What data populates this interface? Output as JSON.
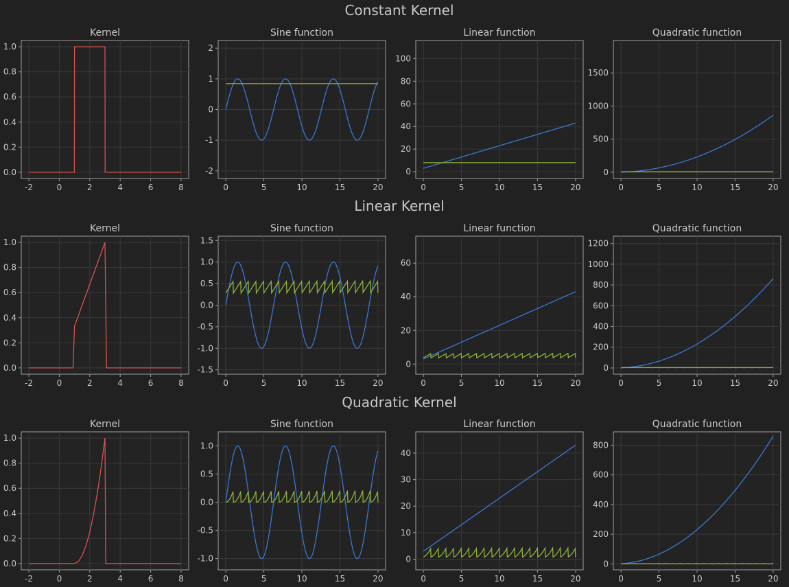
{
  "colors": {
    "background": "#212121",
    "axes_bg": "#232323",
    "kernel": "#d9534f",
    "function": "#3a78d4",
    "convolved": "#8fb339",
    "text": "#c8c8c8"
  },
  "row_titles": [
    "Constant Kernel",
    "Linear Kernel",
    "Quadratic Kernel"
  ],
  "chart_data": [
    {
      "row": 0,
      "col": 0,
      "type": "line",
      "title": "Kernel",
      "xlim": [
        -2.5,
        8.5
      ],
      "ylim": [
        -0.05,
        1.05
      ],
      "xticks": [
        -2,
        0,
        2,
        4,
        6,
        8
      ],
      "yticks": [
        0.0,
        0.2,
        0.4,
        0.6,
        0.8,
        1.0
      ],
      "ytick_decimals": 1,
      "series": [
        {
          "role": "kernel",
          "x": [
            -2,
            0.99,
            1,
            3,
            3.01,
            8
          ],
          "y": [
            0,
            0,
            1,
            1,
            0,
            0
          ]
        }
      ]
    },
    {
      "row": 0,
      "col": 1,
      "type": "line",
      "title": "Sine function",
      "xlim": [
        -1,
        21
      ],
      "ylim": [
        -2.25,
        2.25
      ],
      "xticks": [
        0,
        5,
        10,
        15,
        20
      ],
      "yticks": [
        -2,
        -1,
        0,
        1,
        2
      ],
      "ytick_decimals": 0,
      "series": [
        {
          "role": "function",
          "generator": "sin"
        },
        {
          "role": "convolved",
          "generator": "conv",
          "kernel": "constant",
          "func": "sin"
        }
      ]
    },
    {
      "row": 0,
      "col": 2,
      "type": "line",
      "title": "Linear function",
      "xlim": [
        -1,
        21
      ],
      "ylim": [
        -6,
        116
      ],
      "xticks": [
        0,
        5,
        10,
        15,
        20
      ],
      "yticks": [
        0,
        20,
        40,
        60,
        80,
        100
      ],
      "ytick_decimals": 0,
      "series": [
        {
          "role": "function",
          "generator": "linear"
        },
        {
          "role": "convolved",
          "generator": "conv",
          "kernel": "constant",
          "func": "linear"
        }
      ]
    },
    {
      "row": 0,
      "col": 3,
      "type": "line",
      "title": "Quadratic function",
      "xlim": [
        -1,
        21
      ],
      "ylim": [
        -95,
        1990
      ],
      "xticks": [
        0,
        5,
        10,
        15,
        20
      ],
      "yticks": [
        0,
        500,
        1000,
        1500
      ],
      "ytick_decimals": 0,
      "series": [
        {
          "role": "function",
          "generator": "quadratic"
        },
        {
          "role": "convolved",
          "generator": "conv",
          "kernel": "constant",
          "func": "quadratic"
        }
      ]
    },
    {
      "row": 1,
      "col": 0,
      "type": "line",
      "title": "Kernel",
      "xlim": [
        -2.5,
        8.5
      ],
      "ylim": [
        -0.05,
        1.05
      ],
      "xticks": [
        -2,
        0,
        2,
        4,
        6,
        8
      ],
      "yticks": [
        0.0,
        0.2,
        0.4,
        0.6,
        0.8,
        1.0
      ],
      "ytick_decimals": 1,
      "series": [
        {
          "role": "kernel",
          "x": [
            -2,
            0.9,
            1,
            3,
            3.1,
            8
          ],
          "y": [
            0,
            0,
            0.333,
            1,
            0,
            0
          ]
        }
      ]
    },
    {
      "row": 1,
      "col": 1,
      "type": "line",
      "title": "Sine function",
      "xlim": [
        -1,
        21
      ],
      "ylim": [
        -1.6,
        1.6
      ],
      "xticks": [
        0,
        5,
        10,
        15,
        20
      ],
      "yticks": [
        -1.5,
        -1.0,
        -0.5,
        0.0,
        0.5,
        1.0,
        1.5
      ],
      "ytick_decimals": 1,
      "series": [
        {
          "role": "function",
          "generator": "sin"
        },
        {
          "role": "convolved",
          "generator": "conv",
          "kernel": "linear",
          "func": "sin"
        }
      ]
    },
    {
      "row": 1,
      "col": 2,
      "type": "line",
      "title": "Linear function",
      "xlim": [
        -1,
        21
      ],
      "ylim": [
        -6,
        76
      ],
      "xticks": [
        0,
        5,
        10,
        15,
        20
      ],
      "yticks": [
        0,
        20,
        40,
        60
      ],
      "ytick_decimals": 0,
      "series": [
        {
          "role": "function",
          "generator": "linear"
        },
        {
          "role": "convolved",
          "generator": "conv",
          "kernel": "linear",
          "func": "linear"
        }
      ]
    },
    {
      "row": 1,
      "col": 3,
      "type": "line",
      "title": "Quadratic function",
      "xlim": [
        -1,
        21
      ],
      "ylim": [
        -60,
        1270
      ],
      "xticks": [
        0,
        5,
        10,
        15,
        20
      ],
      "yticks": [
        0,
        200,
        400,
        600,
        800,
        1000,
        1200
      ],
      "ytick_decimals": 0,
      "series": [
        {
          "role": "function",
          "generator": "quadratic"
        },
        {
          "role": "convolved",
          "generator": "conv",
          "kernel": "linear",
          "func": "quadratic"
        }
      ]
    },
    {
      "row": 2,
      "col": 0,
      "type": "line",
      "title": "Kernel",
      "xlim": [
        -2.5,
        8.5
      ],
      "ylim": [
        -0.05,
        1.05
      ],
      "xticks": [
        -2,
        0,
        2,
        4,
        6,
        8
      ],
      "yticks": [
        0.0,
        0.2,
        0.4,
        0.6,
        0.8,
        1.0
      ],
      "ytick_decimals": 1,
      "series": [
        {
          "role": "kernel",
          "x": [
            -2,
            1,
            1.25,
            1.5,
            1.75,
            2,
            2.25,
            2.5,
            2.75,
            3,
            3.05,
            8
          ],
          "y": [
            0,
            0,
            0.016,
            0.063,
            0.141,
            0.25,
            0.391,
            0.563,
            0.766,
            1,
            0,
            0
          ]
        }
      ]
    },
    {
      "row": 2,
      "col": 1,
      "type": "line",
      "title": "Sine function",
      "xlim": [
        -1,
        21
      ],
      "ylim": [
        -1.2,
        1.25
      ],
      "xticks": [
        0,
        5,
        10,
        15,
        20
      ],
      "yticks": [
        -1.0,
        -0.5,
        0.0,
        0.5,
        1.0
      ],
      "ytick_decimals": 1,
      "series": [
        {
          "role": "function",
          "generator": "sin"
        },
        {
          "role": "convolved",
          "generator": "conv",
          "kernel": "quadratic",
          "func": "sin"
        }
      ]
    },
    {
      "row": 2,
      "col": 2,
      "type": "line",
      "title": "Linear function",
      "xlim": [
        -1,
        21
      ],
      "ylim": [
        -4,
        48
      ],
      "xticks": [
        0,
        5,
        10,
        15,
        20
      ],
      "yticks": [
        0,
        10,
        20,
        30,
        40
      ],
      "ytick_decimals": 0,
      "series": [
        {
          "role": "function",
          "generator": "linear"
        },
        {
          "role": "convolved",
          "generator": "conv",
          "kernel": "quadratic",
          "func": "linear"
        }
      ]
    },
    {
      "row": 2,
      "col": 3,
      "type": "line",
      "title": "Quadratic function",
      "xlim": [
        -1,
        21
      ],
      "ylim": [
        -40,
        890
      ],
      "xticks": [
        0,
        5,
        10,
        15,
        20
      ],
      "yticks": [
        0,
        200,
        400,
        600,
        800
      ],
      "ytick_decimals": 0,
      "series": [
        {
          "role": "function",
          "generator": "quadratic"
        },
        {
          "role": "convolved",
          "generator": "conv",
          "kernel": "quadratic",
          "func": "quadratic"
        }
      ]
    }
  ]
}
